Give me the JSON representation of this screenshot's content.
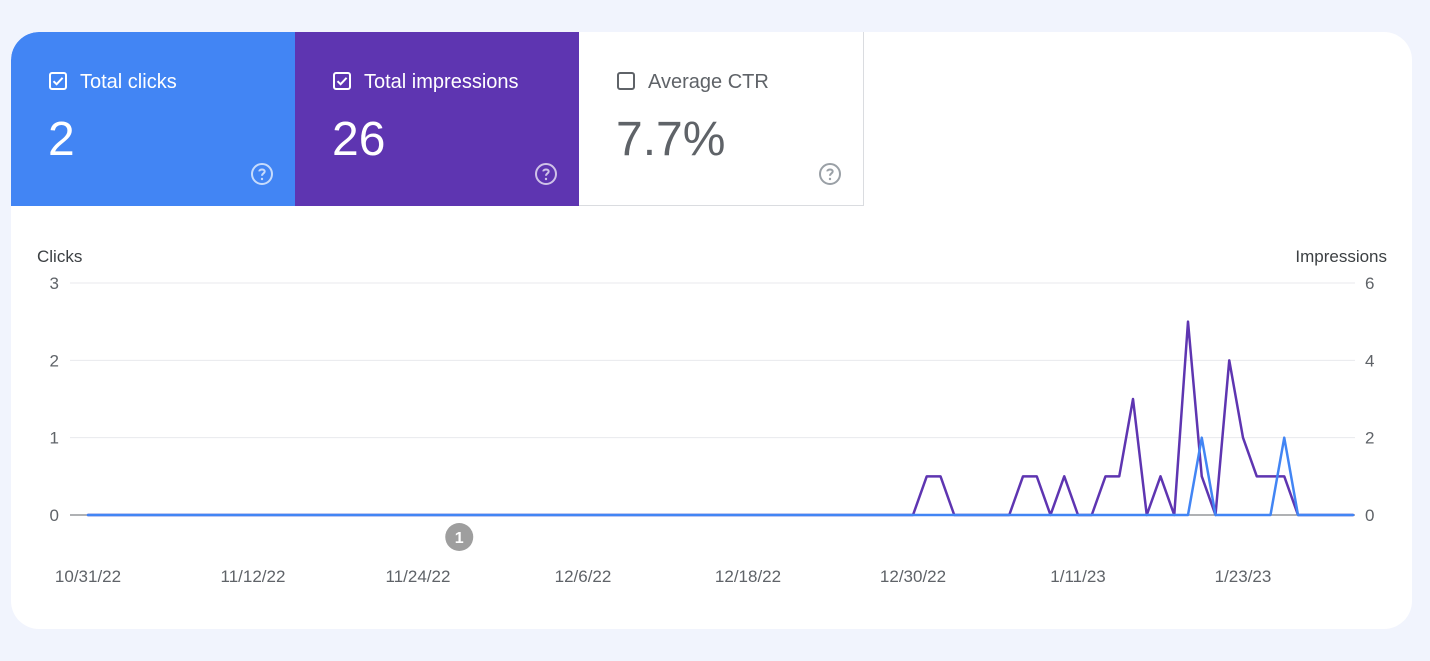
{
  "metrics": {
    "clicks": {
      "label": "Total clicks",
      "value": "2",
      "checked": true,
      "color": "#4285f4"
    },
    "impressions": {
      "label": "Total impressions",
      "value": "26",
      "checked": true,
      "color": "#5e35b1"
    },
    "ctr": {
      "label": "Average CTR",
      "value": "7.7%",
      "checked": false
    }
  },
  "chart_data": {
    "type": "line",
    "x_tick_labels": [
      "10/31/22",
      "11/12/22",
      "11/24/22",
      "12/6/22",
      "12/18/22",
      "12/30/22",
      "1/11/23",
      "1/23/23"
    ],
    "x": [
      "10/31/22",
      "11/1/22",
      "11/2/22",
      "11/3/22",
      "11/4/22",
      "11/5/22",
      "11/6/22",
      "11/7/22",
      "11/8/22",
      "11/9/22",
      "11/10/22",
      "11/11/22",
      "11/12/22",
      "11/13/22",
      "11/14/22",
      "11/15/22",
      "11/16/22",
      "11/17/22",
      "11/18/22",
      "11/19/22",
      "11/20/22",
      "11/21/22",
      "11/22/22",
      "11/23/22",
      "11/24/22",
      "11/25/22",
      "11/26/22",
      "11/27/22",
      "11/28/22",
      "11/29/22",
      "11/30/22",
      "12/1/22",
      "12/2/22",
      "12/3/22",
      "12/4/22",
      "12/5/22",
      "12/6/22",
      "12/7/22",
      "12/8/22",
      "12/9/22",
      "12/10/22",
      "12/11/22",
      "12/12/22",
      "12/13/22",
      "12/14/22",
      "12/15/22",
      "12/16/22",
      "12/17/22",
      "12/18/22",
      "12/19/22",
      "12/20/22",
      "12/21/22",
      "12/22/22",
      "12/23/22",
      "12/24/22",
      "12/25/22",
      "12/26/22",
      "12/27/22",
      "12/28/22",
      "12/29/22",
      "12/30/22",
      "12/31/22",
      "1/1/23",
      "1/2/23",
      "1/3/23",
      "1/4/23",
      "1/5/23",
      "1/6/23",
      "1/7/23",
      "1/8/23",
      "1/9/23",
      "1/10/23",
      "1/11/23",
      "1/12/23",
      "1/13/23",
      "1/14/23",
      "1/15/23",
      "1/16/23",
      "1/17/23",
      "1/18/23",
      "1/19/23",
      "1/20/23",
      "1/21/23",
      "1/22/23",
      "1/23/23",
      "1/24/23",
      "1/25/23",
      "1/26/23",
      "1/27/23",
      "1/28/23",
      "1/29/23",
      "1/30/23",
      "1/31/23"
    ],
    "left_axis": {
      "title": "Clicks",
      "ticks": [
        0,
        1,
        2,
        3
      ],
      "range": [
        0,
        3
      ]
    },
    "right_axis": {
      "title": "Impressions",
      "ticks": [
        0,
        2,
        4,
        6
      ],
      "range": [
        0,
        6
      ]
    },
    "series": [
      {
        "name": "Total impressions",
        "axis": "right",
        "color": "#5e35b1",
        "values": [
          0,
          0,
          0,
          0,
          0,
          0,
          0,
          0,
          0,
          0,
          0,
          0,
          0,
          0,
          0,
          0,
          0,
          0,
          0,
          0,
          0,
          0,
          0,
          0,
          0,
          0,
          0,
          0,
          0,
          0,
          0,
          0,
          0,
          0,
          0,
          0,
          0,
          0,
          0,
          0,
          0,
          0,
          0,
          0,
          0,
          0,
          0,
          0,
          0,
          0,
          0,
          0,
          0,
          0,
          0,
          0,
          0,
          0,
          0,
          0,
          0,
          1,
          1,
          0,
          0,
          0,
          0,
          0,
          1,
          1,
          0,
          1,
          0,
          0,
          1,
          1,
          3,
          0,
          1,
          0,
          5,
          1,
          0,
          4,
          2,
          1,
          1,
          1,
          0,
          0,
          0,
          0,
          0
        ]
      },
      {
        "name": "Total clicks",
        "axis": "left",
        "color": "#4285f4",
        "values": [
          0,
          0,
          0,
          0,
          0,
          0,
          0,
          0,
          0,
          0,
          0,
          0,
          0,
          0,
          0,
          0,
          0,
          0,
          0,
          0,
          0,
          0,
          0,
          0,
          0,
          0,
          0,
          0,
          0,
          0,
          0,
          0,
          0,
          0,
          0,
          0,
          0,
          0,
          0,
          0,
          0,
          0,
          0,
          0,
          0,
          0,
          0,
          0,
          0,
          0,
          0,
          0,
          0,
          0,
          0,
          0,
          0,
          0,
          0,
          0,
          0,
          0,
          0,
          0,
          0,
          0,
          0,
          0,
          0,
          0,
          0,
          0,
          0,
          0,
          0,
          0,
          0,
          0,
          0,
          0,
          0,
          1,
          0,
          0,
          0,
          0,
          0,
          1,
          0,
          0,
          0,
          0,
          0
        ]
      }
    ],
    "annotations": [
      {
        "date": "11/27/22",
        "label": "1"
      }
    ],
    "grid": true
  }
}
